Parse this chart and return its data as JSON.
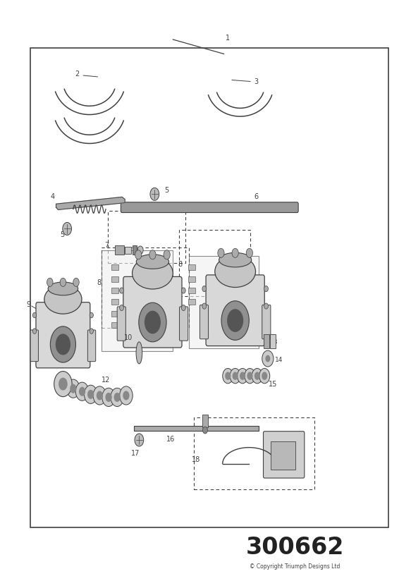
{
  "title": "300662",
  "copyright": "© Copyright Triumph Designs Ltd",
  "background_color": "#ffffff",
  "border_color": "#404040",
  "line_color": "#404040",
  "fig_width": 5.83,
  "fig_height": 8.24,
  "dpi": 100
}
